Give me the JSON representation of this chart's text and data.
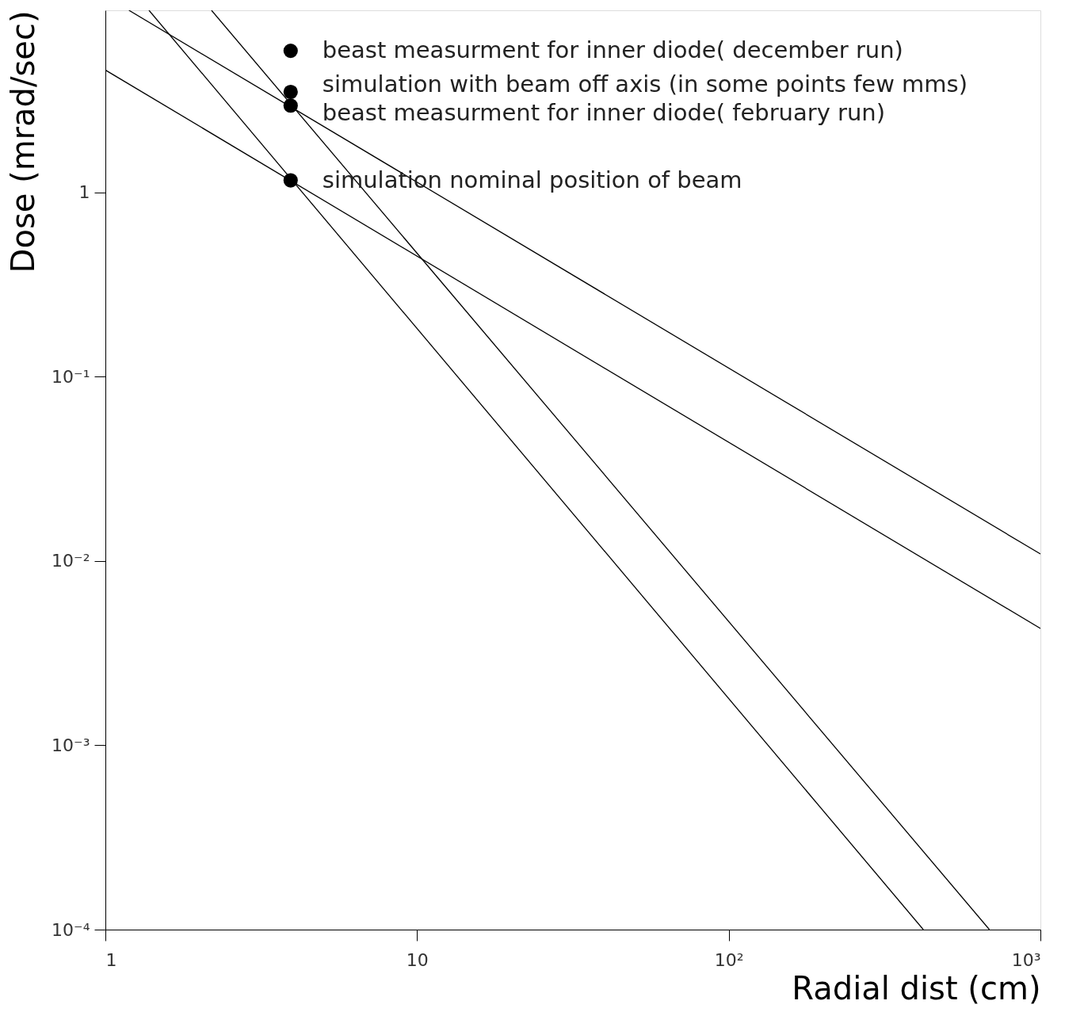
{
  "chart_data": {
    "type": "line",
    "xlabel": "Radial dist (cm)",
    "ylabel": "Dose (mrad/sec)",
    "log": "xy",
    "grid": false,
    "marker": "none",
    "line_style": "solid",
    "xlim": [
      1,
      1000
    ],
    "ylim": [
      0.0001,
      9.7
    ],
    "xticks": [
      1,
      10,
      {
        "value": 100,
        "label": "10²"
      },
      {
        "value": 1000,
        "label": "10³"
      }
    ],
    "yticks": [
      {
        "value": 0.0001,
        "label": "10⁻⁴"
      },
      {
        "value": 0.001,
        "label": "10⁻³"
      },
      {
        "value": 0.01,
        "label": "10⁻²"
      },
      {
        "value": 0.1,
        "label": "10⁻¹"
      },
      1
    ],
    "series": [
      {
        "color": "#000000",
        "x": [
          1,
          1000
        ],
        "values": [
          4.6,
          0.0043
        ]
      },
      {
        "color": "#000000",
        "x": [
          1.19,
          1000
        ],
        "values": [
          9.7,
          0.0109
        ]
      },
      {
        "color": "#000000",
        "x": [
          1.38,
          421
        ],
        "values": [
          9.7,
          0.0001
        ]
      },
      {
        "color": "#000000",
        "x": [
          2.19,
          686
        ],
        "values": [
          9.7,
          0.0001
        ]
      },
      {
        "type": "scatter",
        "marker": "circle",
        "name": "beast measurment for inner diode( december run)",
        "color": "#000000",
        "x": [
          3.93
        ],
        "values": [
          5.85
        ]
      },
      {
        "type": "scatter",
        "marker": "circle",
        "name": "simulation with beam off axis (in some points few mms)",
        "color": "#000000",
        "x": [
          3.93
        ],
        "values": [
          3.5
        ]
      },
      {
        "type": "scatter",
        "marker": "circle",
        "name": "beast measurment for inner diode( february run)",
        "color": "#000000",
        "x": [
          3.93
        ],
        "values": [
          2.95
        ]
      },
      {
        "type": "scatter",
        "marker": "circle",
        "name": "simulation nominal position of beam",
        "color": "#000000",
        "x": [
          3.93
        ],
        "values": [
          1.16
        ]
      }
    ]
  }
}
